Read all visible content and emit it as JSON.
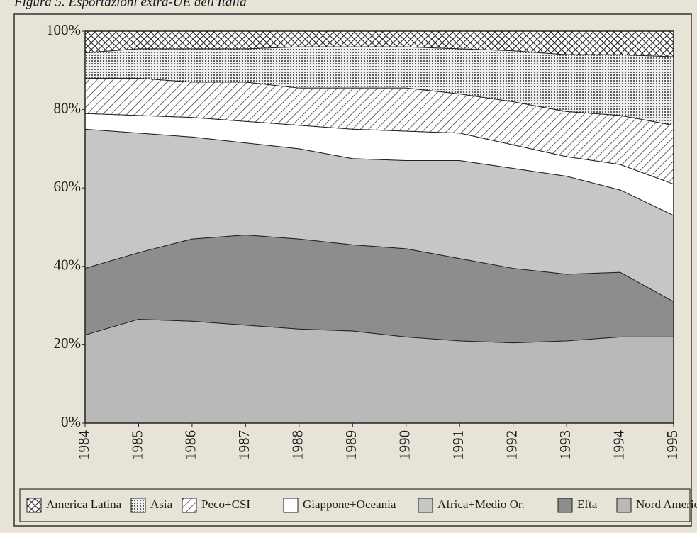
{
  "chart_data": {
    "type": "stacked_area_100",
    "title": "Figura 5. Esportazioni extra-UE dell'Italia",
    "categories": [
      "1984",
      "1985",
      "1986",
      "1987",
      "1988",
      "1989",
      "1990",
      "1991",
      "1992",
      "1993",
      "1994",
      "1995"
    ],
    "series": [
      {
        "name": "Nord America",
        "color": "#b9b9b9",
        "values": [
          22.5,
          26.5,
          26,
          25,
          24,
          23.5,
          22,
          21,
          20.5,
          21,
          22,
          22
        ]
      },
      {
        "name": "Efta",
        "color": "#8d8d8d",
        "values": [
          17,
          17,
          21,
          23,
          23,
          22,
          22.5,
          21,
          19,
          17,
          16.5,
          9
        ]
      },
      {
        "name": "Africa+Medio Or.",
        "color": "#c6c6c6",
        "values": [
          35.5,
          30.5,
          26,
          23.5,
          23,
          22,
          22.5,
          25,
          25.5,
          25,
          21,
          22
        ]
      },
      {
        "name": "Giappone+Oceania",
        "color": "#ffffff",
        "values": [
          4,
          4.5,
          5,
          5.5,
          6,
          7.5,
          7.5,
          7,
          6,
          5,
          6.5,
          8
        ]
      },
      {
        "name": "Peco+CSI",
        "color": "#ffffff",
        "pattern": "diagonal",
        "values": [
          9,
          9.5,
          9,
          10,
          9.5,
          10.5,
          11,
          10,
          11,
          11.5,
          12.5,
          15
        ]
      },
      {
        "name": "Asia",
        "color": "#ffffff",
        "pattern": "dots",
        "values": [
          6.5,
          7.5,
          8.5,
          8.5,
          10.5,
          10.5,
          10.5,
          11.5,
          13,
          14.5,
          15.5,
          17.5
        ]
      },
      {
        "name": "America Latina",
        "color": "#ffffff",
        "pattern": "crosshatch",
        "values": [
          5.5,
          4.5,
          4.5,
          4.5,
          4,
          4,
          4,
          4.5,
          5,
          6,
          6,
          6.5
        ]
      }
    ],
    "ylim": [
      0,
      100
    ],
    "yticks": [
      {
        "value": 0,
        "label": "0%"
      },
      {
        "value": 20,
        "label": "20%"
      },
      {
        "value": 40,
        "label": "40%"
      },
      {
        "value": 60,
        "label": "60%"
      },
      {
        "value": 80,
        "label": "80%"
      },
      {
        "value": 100,
        "label": "100%"
      }
    ],
    "legend": "bottom"
  }
}
